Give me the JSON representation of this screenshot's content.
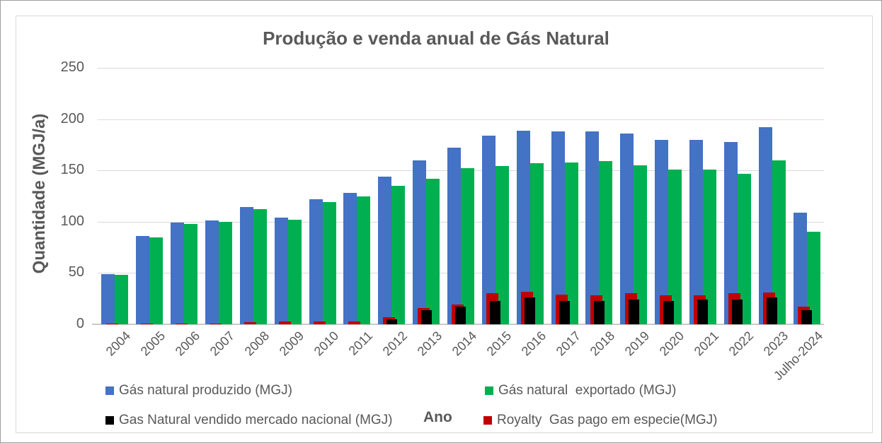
{
  "chart_data": {
    "type": "bar",
    "title": "Produção e venda anual de Gás Natural",
    "xlabel": "Ano",
    "ylabel": "Quantidade (MGJ/a)",
    "ylim": [
      0,
      250
    ],
    "yticks": [
      0,
      50,
      100,
      150,
      200,
      250
    ],
    "grid": "horizontal",
    "legend_position": "bottom",
    "categories": [
      "2004",
      "2005",
      "2006",
      "2007",
      "2008",
      "2009",
      "2010",
      "2011",
      "2012",
      "2013",
      "2014",
      "2015",
      "2016",
      "2017",
      "2018",
      "2019",
      "2020",
      "2021",
      "2022",
      "2023",
      "Julho-2024"
    ],
    "series": [
      {
        "key": "produzido",
        "name": "Gás natural produzido (MGJ)",
        "color": "#4472C4",
        "values": [
          49,
          86,
          99,
          101,
          114,
          104,
          122,
          128,
          144,
          160,
          172,
          184,
          189,
          188,
          188,
          186,
          180,
          180,
          178,
          192,
          109
        ]
      },
      {
        "key": "exportado",
        "name": "Gás natural  exportado (MGJ)",
        "color": "#00B050",
        "values": [
          48,
          85,
          98,
          100,
          112,
          102,
          119,
          125,
          135,
          142,
          152,
          154,
          157,
          158,
          159,
          155,
          151,
          151,
          147,
          160,
          90
        ]
      },
      {
        "key": "vendido_nacional",
        "name": "Gas Natural vendido mercado nacional (MGJ)",
        "color": "#000000",
        "values": [
          0,
          0,
          0,
          0,
          0,
          0,
          0,
          0,
          5,
          14,
          17,
          23,
          26,
          23,
          23,
          24,
          23,
          24,
          24,
          26,
          14
        ]
      },
      {
        "key": "royalty",
        "name": "Royalty  Gas pago em especie(MGJ)",
        "color": "#C00000",
        "values": [
          1,
          1,
          1,
          1,
          2,
          3,
          3,
          3,
          7,
          16,
          19,
          30,
          32,
          29,
          28,
          30,
          28,
          28,
          30,
          31,
          17
        ]
      }
    ]
  }
}
